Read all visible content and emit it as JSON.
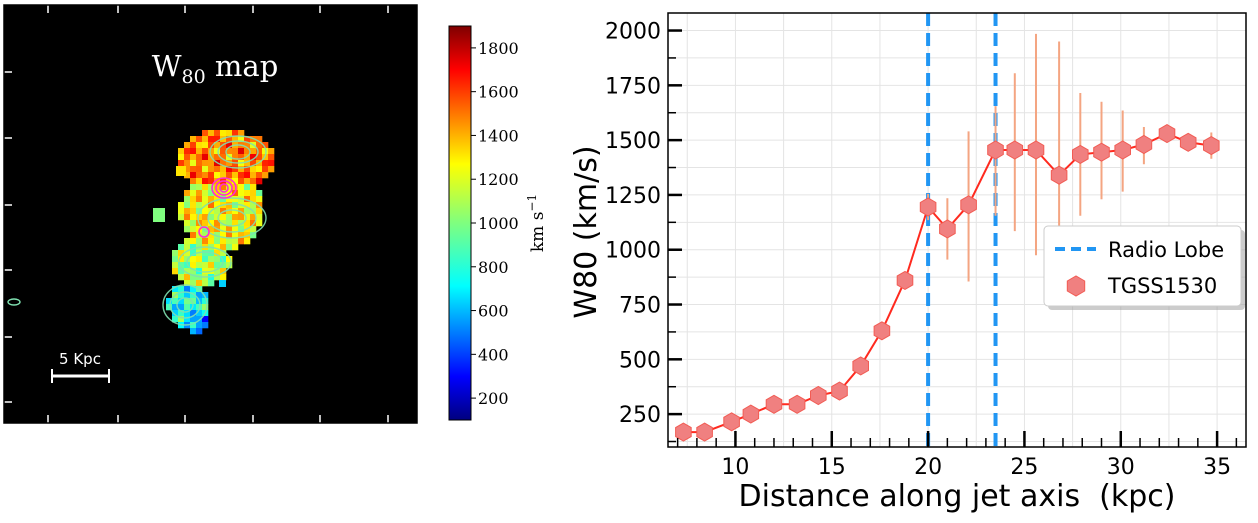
{
  "map_panel": {
    "title": "W",
    "title_sub": "80",
    "title_suffix": " map",
    "scalebar_label": "5 Kpc",
    "colorbar": {
      "label": "km s",
      "label_sup": "−1",
      "ticks": [
        "200",
        "400",
        "600",
        "800",
        "1000",
        "1200",
        "1400",
        "1600",
        "1800"
      ],
      "tick_values": [
        200,
        400,
        600,
        800,
        1000,
        1200,
        1400,
        1600,
        1800
      ],
      "range": [
        100,
        1900
      ],
      "colormap": "jet"
    },
    "background": "#000000"
  },
  "chart_data": {
    "type": "line",
    "x": [
      7.3,
      8.4,
      9.8,
      10.8,
      12.0,
      13.2,
      14.3,
      15.4,
      16.5,
      17.6,
      18.8,
      20.0,
      21.0,
      22.1,
      23.5,
      24.5,
      25.6,
      26.8,
      27.9,
      29.0,
      30.1,
      31.2,
      32.4,
      33.5,
      34.7
    ],
    "series": [
      {
        "name": "TGSS1530",
        "values": [
          168,
          168,
          215,
          250,
          295,
          295,
          335,
          355,
          470,
          630,
          860,
          1195,
          1095,
          1205,
          1455,
          1455,
          1455,
          1340,
          1435,
          1445,
          1455,
          1480,
          1530,
          1490,
          1475
        ],
        "err_low": [
          0,
          0,
          0,
          0,
          0,
          0,
          0,
          0,
          0,
          0,
          40,
          60,
          140,
          350,
          300,
          370,
          480,
          300,
          280,
          215,
          190,
          90,
          0,
          0,
          60
        ],
        "err_high": [
          0,
          0,
          0,
          0,
          0,
          0,
          0,
          0,
          0,
          0,
          40,
          60,
          140,
          335,
          200,
          350,
          530,
          610,
          280,
          230,
          180,
          80,
          0,
          0,
          60
        ],
        "color": "#ff3b30",
        "marker_color": "#f08080"
      }
    ],
    "vlines": {
      "name": "Radio Lobe",
      "x": [
        20.0,
        23.5
      ],
      "color": "#2196f3"
    },
    "xlabel": "Distance along jet axis  (kpc)",
    "ylabel": "W80 (km/s)",
    "xlim": [
      6.5,
      36.5
    ],
    "ylim": [
      100,
      2080
    ],
    "xticks": [
      10,
      15,
      20,
      25,
      30,
      35
    ],
    "yticks": [
      250,
      500,
      750,
      1000,
      1250,
      1500,
      1750,
      2000
    ],
    "grid": true,
    "legend_position": "center-right"
  }
}
